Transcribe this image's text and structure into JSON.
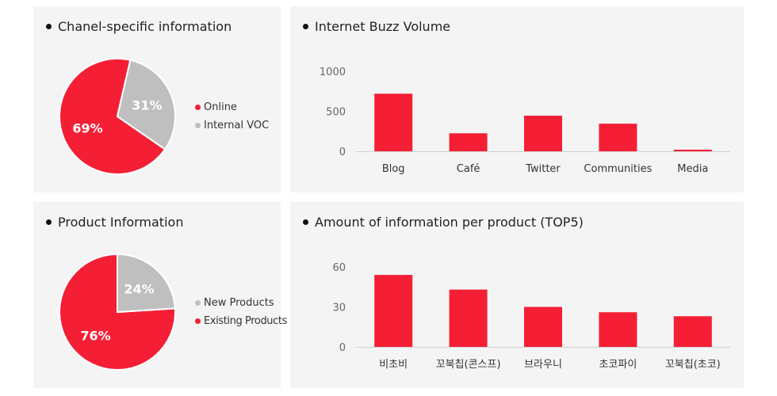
{
  "colors": {
    "red": "#f41f35",
    "grey": "#bfbfbf"
  },
  "panels": {
    "channel": {
      "title": "Chanel-specific information"
    },
    "buzz": {
      "title": "Internet Buzz Volume"
    },
    "product": {
      "title": "Product Information"
    },
    "top5": {
      "title": "Amount of information per product (TOP5)"
    }
  },
  "chart_data": [
    {
      "id": "channel",
      "type": "pie",
      "title": "Chanel-specific information",
      "slices": [
        {
          "name": "Online",
          "value": 69,
          "label": "69%",
          "color": "#f41f35"
        },
        {
          "name": "Internal VOC",
          "value": 31,
          "label": "31%",
          "color": "#bfbfbf"
        }
      ],
      "legend": [
        "Online",
        "Internal VOC"
      ],
      "legend_position": "right"
    },
    {
      "id": "buzz",
      "type": "bar",
      "title": "Internet Buzz Volume",
      "categories": [
        "Blog",
        "Café",
        "Twitter",
        "Communities",
        "Media"
      ],
      "values": [
        720,
        225,
        445,
        345,
        20
      ],
      "yticks": [
        0,
        500,
        1000
      ],
      "ylim": [
        0,
        1000
      ],
      "grid": false
    },
    {
      "id": "product",
      "type": "pie",
      "title": "Product Information",
      "slices": [
        {
          "name": "New Products",
          "value": 24,
          "label": "24%",
          "color": "#bfbfbf"
        },
        {
          "name": "Existing Products",
          "value": 76,
          "label": "76%",
          "color": "#f41f35"
        }
      ],
      "legend": [
        "New Products",
        "Existing Products"
      ],
      "legend_position": "right"
    },
    {
      "id": "top5",
      "type": "bar",
      "title": "Amount of information per product (TOP5)",
      "categories": [
        "비초비",
        "꼬북칩(콘스프)",
        "브라우니",
        "초코파이",
        "꼬북칩(초코)"
      ],
      "values": [
        54,
        43,
        30,
        26,
        23
      ],
      "yticks": [
        0,
        30,
        60
      ],
      "ylim": [
        0,
        60
      ],
      "grid": false
    }
  ]
}
